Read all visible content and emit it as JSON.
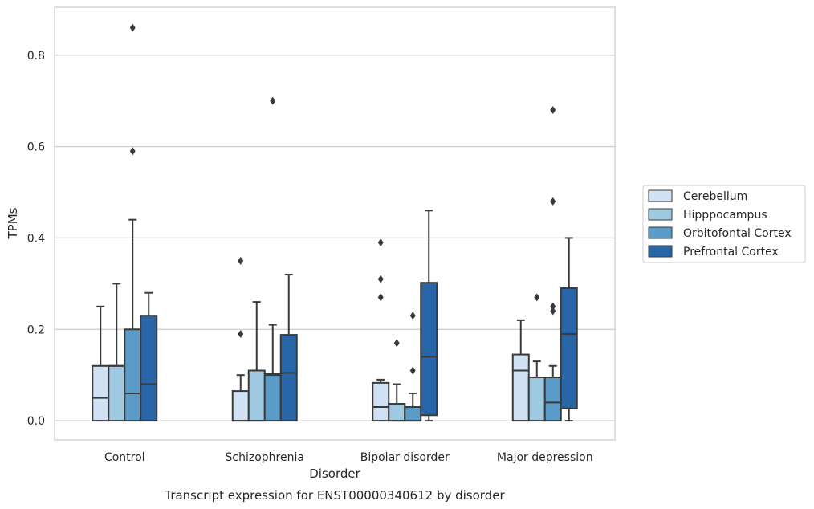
{
  "caption": "Transcript expression for ENST00000340612 by disorder",
  "chart_data": {
    "type": "box",
    "xlabel": "Disorder",
    "ylabel": "TPMs",
    "ylim": [
      -0.042,
      0.905
    ],
    "yticks": [
      "0.0",
      "0.2",
      "0.4",
      "0.6",
      "0.8"
    ],
    "ytick_values": [
      0.0,
      0.2,
      0.4,
      0.6,
      0.8
    ],
    "grid": "horizontal",
    "legend_position": "right",
    "categories": [
      "Control",
      "Schizophrenia",
      "Bipolar disorder",
      "Major depression"
    ],
    "series": [
      {
        "name": "Cerebellum",
        "color": "#cfe1f2",
        "boxes": [
          {
            "min": 0,
            "q1": 0,
            "median": 0.05,
            "q3": 0.12,
            "max": 0.25,
            "outliers": []
          },
          {
            "min": 0,
            "q1": 0,
            "median": 0.0,
            "q3": 0.065,
            "max": 0.1,
            "outliers": [
              0.19,
              0.35
            ]
          },
          {
            "min": 0,
            "q1": 0,
            "median": 0.03,
            "q3": 0.083,
            "max": 0.09,
            "outliers": [
              0.27,
              0.31,
              0.39
            ]
          },
          {
            "min": 0,
            "q1": 0,
            "median": 0.11,
            "q3": 0.145,
            "max": 0.22,
            "outliers": []
          }
        ]
      },
      {
        "name": "Hipppocampus",
        "color": "#9fc9e0",
        "boxes": [
          {
            "min": 0,
            "q1": 0,
            "median": 0.12,
            "q3": 0.12,
            "max": 0.3,
            "outliers": []
          },
          {
            "min": 0,
            "q1": 0,
            "median": 0.0,
            "q3": 0.11,
            "max": 0.26,
            "outliers": []
          },
          {
            "min": 0,
            "q1": 0,
            "median": 0.0,
            "q3": 0.037,
            "max": 0.08,
            "outliers": [
              0.17
            ]
          },
          {
            "min": 0,
            "q1": 0,
            "median": 0.095,
            "q3": 0.095,
            "max": 0.13,
            "outliers": [
              0.27
            ]
          }
        ]
      },
      {
        "name": "Orbitofontal Cortex",
        "color": "#5b9bc8",
        "boxes": [
          {
            "min": 0,
            "q1": 0,
            "median": 0.06,
            "q3": 0.2,
            "max": 0.44,
            "outliers": [
              0.59,
              0.86
            ]
          },
          {
            "min": 0,
            "q1": 0,
            "median": 0.1,
            "q3": 0.103,
            "max": 0.21,
            "outliers": [
              0.7
            ]
          },
          {
            "min": 0,
            "q1": 0,
            "median": 0.0,
            "q3": 0.03,
            "max": 0.06,
            "outliers": [
              0.11,
              0.23
            ]
          },
          {
            "min": 0,
            "q1": 0,
            "median": 0.04,
            "q3": 0.095,
            "max": 0.12,
            "outliers": [
              0.24,
              0.25,
              0.48,
              0.68
            ]
          }
        ]
      },
      {
        "name": "Prefrontal Cortex",
        "color": "#2866a8",
        "boxes": [
          {
            "min": 0,
            "q1": 0,
            "median": 0.08,
            "q3": 0.23,
            "max": 0.28,
            "outliers": []
          },
          {
            "min": 0,
            "q1": 0,
            "median": 0.105,
            "q3": 0.188,
            "max": 0.32,
            "outliers": []
          },
          {
            "min": 0,
            "q1": 0.012,
            "median": 0.14,
            "q3": 0.302,
            "max": 0.46,
            "outliers": []
          },
          {
            "min": 0,
            "q1": 0.027,
            "median": 0.19,
            "q3": 0.29,
            "max": 0.4,
            "outliers": []
          }
        ]
      }
    ]
  }
}
